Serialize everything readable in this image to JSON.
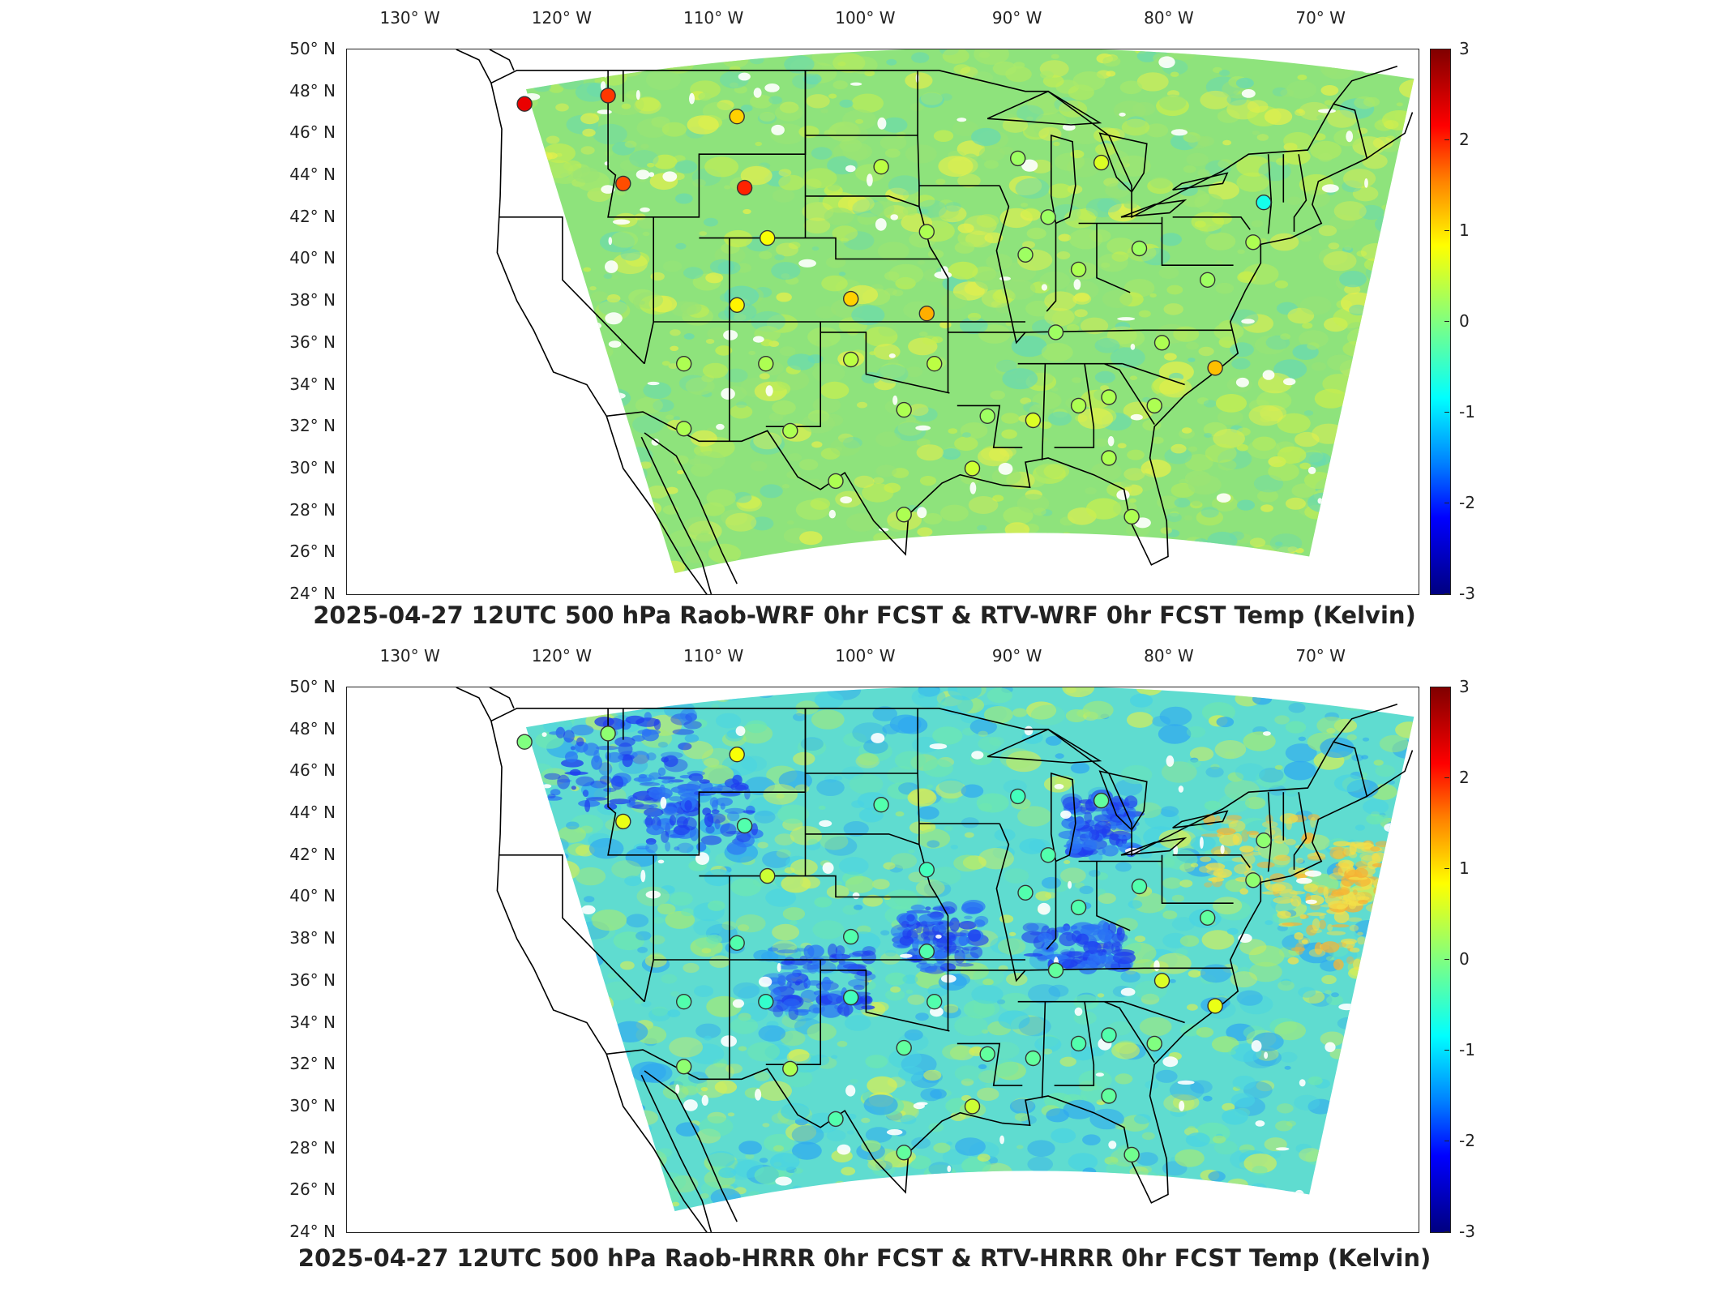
{
  "lon_labels": [
    "130° W",
    "120° W",
    "110° W",
    "100° W",
    "90° W",
    "80° W",
    "70° W"
  ],
  "lat_labels": [
    "50° N",
    "48° N",
    "46° N",
    "44° N",
    "42° N",
    "40° N",
    "38° N",
    "36° N",
    "34° N",
    "32° N",
    "30° N",
    "28° N",
    "26° N",
    "24° N"
  ],
  "colorbar_ticks": [
    "3",
    "2",
    "1",
    "0",
    "-1",
    "-2",
    "-3"
  ],
  "colors": {
    "field_base_top": "#7fe38a",
    "field_base_bottom": "#55d9d6",
    "cold": "#1e3cf0",
    "warm": "#f2e04a"
  },
  "panels": [
    {
      "title": "2025-04-27 12UTC 500 hPa Raob-WRF 0hr FCST & RTV-WRF 0hr FCST Temp (Kelvin)",
      "stations": [
        {
          "lon": -122.5,
          "lat": 47.4,
          "value": 2.3
        },
        {
          "lon": -117.0,
          "lat": 47.8,
          "value": 1.9
        },
        {
          "lon": -108.5,
          "lat": 46.8,
          "value": 1.1
        },
        {
          "lon": -116.0,
          "lat": 43.6,
          "value": 1.8
        },
        {
          "lon": -108.0,
          "lat": 43.4,
          "value": 2.0
        },
        {
          "lon": -99.0,
          "lat": 44.4,
          "value": 0.4
        },
        {
          "lon": -84.5,
          "lat": 44.6,
          "value": 0.6
        },
        {
          "lon": -106.5,
          "lat": 41.0,
          "value": 0.8
        },
        {
          "lon": -96.0,
          "lat": 41.3,
          "value": 0.3
        },
        {
          "lon": -89.5,
          "lat": 40.2,
          "value": 0.2
        },
        {
          "lon": -86.0,
          "lat": 39.5,
          "value": 0.3
        },
        {
          "lon": -82.0,
          "lat": 40.5,
          "value": 0.2
        },
        {
          "lon": -73.8,
          "lat": 42.7,
          "value": -0.7
        },
        {
          "lon": -108.5,
          "lat": 37.8,
          "value": 0.9
        },
        {
          "lon": -101.0,
          "lat": 38.1,
          "value": 1.1
        },
        {
          "lon": -96.0,
          "lat": 37.4,
          "value": 1.3
        },
        {
          "lon": -87.5,
          "lat": 36.5,
          "value": 0.2
        },
        {
          "lon": -80.5,
          "lat": 36.0,
          "value": 0.3
        },
        {
          "lon": -112.0,
          "lat": 35.0,
          "value": 0.3
        },
        {
          "lon": -106.6,
          "lat": 35.0,
          "value": 0.3
        },
        {
          "lon": -101.0,
          "lat": 35.2,
          "value": 0.4
        },
        {
          "lon": -95.5,
          "lat": 35.0,
          "value": 0.4
        },
        {
          "lon": -77.0,
          "lat": 34.8,
          "value": 1.2
        },
        {
          "lon": -112.0,
          "lat": 31.9,
          "value": 0.3
        },
        {
          "lon": -105.0,
          "lat": 31.8,
          "value": 0.3
        },
        {
          "lon": -97.5,
          "lat": 32.8,
          "value": 0.3
        },
        {
          "lon": -92.0,
          "lat": 32.5,
          "value": 0.2
        },
        {
          "lon": -89.0,
          "lat": 32.3,
          "value": 0.6
        },
        {
          "lon": -86.0,
          "lat": 33.0,
          "value": 0.3
        },
        {
          "lon": -84.0,
          "lat": 33.4,
          "value": 0.3
        },
        {
          "lon": -81.0,
          "lat": 33.0,
          "value": 0.3
        },
        {
          "lon": -102.0,
          "lat": 29.4,
          "value": 0.3
        },
        {
          "lon": -93.0,
          "lat": 30.0,
          "value": 0.5
        },
        {
          "lon": -84.0,
          "lat": 30.5,
          "value": 0.3
        },
        {
          "lon": -97.5,
          "lat": 27.8,
          "value": 0.3
        },
        {
          "lon": -82.5,
          "lat": 27.7,
          "value": 0.3
        },
        {
          "lon": -74.5,
          "lat": 40.8,
          "value": 0.3
        },
        {
          "lon": -77.5,
          "lat": 39.0,
          "value": 0.2
        },
        {
          "lon": -90.0,
          "lat": 44.8,
          "value": 0.2
        },
        {
          "lon": -88.0,
          "lat": 42.0,
          "value": 0.2
        }
      ]
    },
    {
      "title": "2025-04-27 12UTC 500 hPa Raob-HRRR 0hr FCST & RTV-HRRR 0hr FCST Temp (Kelvin)",
      "stations": [
        {
          "lon": -122.5,
          "lat": 47.4,
          "value": 0.0
        },
        {
          "lon": -117.0,
          "lat": 47.8,
          "value": 0.1
        },
        {
          "lon": -108.5,
          "lat": 46.8,
          "value": 0.8
        },
        {
          "lon": -116.0,
          "lat": 43.6,
          "value": 0.7
        },
        {
          "lon": -108.0,
          "lat": 43.4,
          "value": -0.3
        },
        {
          "lon": -99.0,
          "lat": 44.4,
          "value": -0.3
        },
        {
          "lon": -84.5,
          "lat": 44.6,
          "value": -0.2
        },
        {
          "lon": -106.5,
          "lat": 41.0,
          "value": 0.5
        },
        {
          "lon": -96.0,
          "lat": 41.3,
          "value": -0.4
        },
        {
          "lon": -89.5,
          "lat": 40.2,
          "value": -0.3
        },
        {
          "lon": -86.0,
          "lat": 39.5,
          "value": -0.3
        },
        {
          "lon": -82.0,
          "lat": 40.5,
          "value": -0.3
        },
        {
          "lon": -73.8,
          "lat": 42.7,
          "value": 0.1
        },
        {
          "lon": -108.5,
          "lat": 37.8,
          "value": -0.3
        },
        {
          "lon": -101.0,
          "lat": 38.1,
          "value": -0.3
        },
        {
          "lon": -96.0,
          "lat": 37.4,
          "value": -0.3
        },
        {
          "lon": -87.5,
          "lat": 36.5,
          "value": -0.2
        },
        {
          "lon": -80.5,
          "lat": 36.0,
          "value": 0.6
        },
        {
          "lon": -112.0,
          "lat": 35.0,
          "value": -0.3
        },
        {
          "lon": -106.6,
          "lat": 35.0,
          "value": -0.5
        },
        {
          "lon": -101.0,
          "lat": 35.2,
          "value": -0.4
        },
        {
          "lon": -95.5,
          "lat": 35.0,
          "value": -0.3
        },
        {
          "lon": -77.0,
          "lat": 34.8,
          "value": 0.7
        },
        {
          "lon": -112.0,
          "lat": 31.9,
          "value": 0.1
        },
        {
          "lon": -105.0,
          "lat": 31.8,
          "value": 0.3
        },
        {
          "lon": -97.5,
          "lat": 32.8,
          "value": -0.2
        },
        {
          "lon": -92.0,
          "lat": 32.5,
          "value": -0.2
        },
        {
          "lon": -89.0,
          "lat": 32.3,
          "value": -0.2
        },
        {
          "lon": -86.0,
          "lat": 33.0,
          "value": -0.3
        },
        {
          "lon": -84.0,
          "lat": 33.4,
          "value": -0.3
        },
        {
          "lon": -81.0,
          "lat": 33.0,
          "value": 0.0
        },
        {
          "lon": -102.0,
          "lat": 29.4,
          "value": -0.3
        },
        {
          "lon": -93.0,
          "lat": 30.0,
          "value": 0.5
        },
        {
          "lon": -84.0,
          "lat": 30.5,
          "value": -0.2
        },
        {
          "lon": -97.5,
          "lat": 27.8,
          "value": -0.2
        },
        {
          "lon": -82.5,
          "lat": 27.7,
          "value": -0.1
        },
        {
          "lon": -74.5,
          "lat": 40.8,
          "value": 0.1
        },
        {
          "lon": -77.5,
          "lat": 39.0,
          "value": -0.2
        },
        {
          "lon": -90.0,
          "lat": 44.8,
          "value": -0.4
        },
        {
          "lon": -88.0,
          "lat": 42.0,
          "value": -0.3
        }
      ]
    }
  ]
}
